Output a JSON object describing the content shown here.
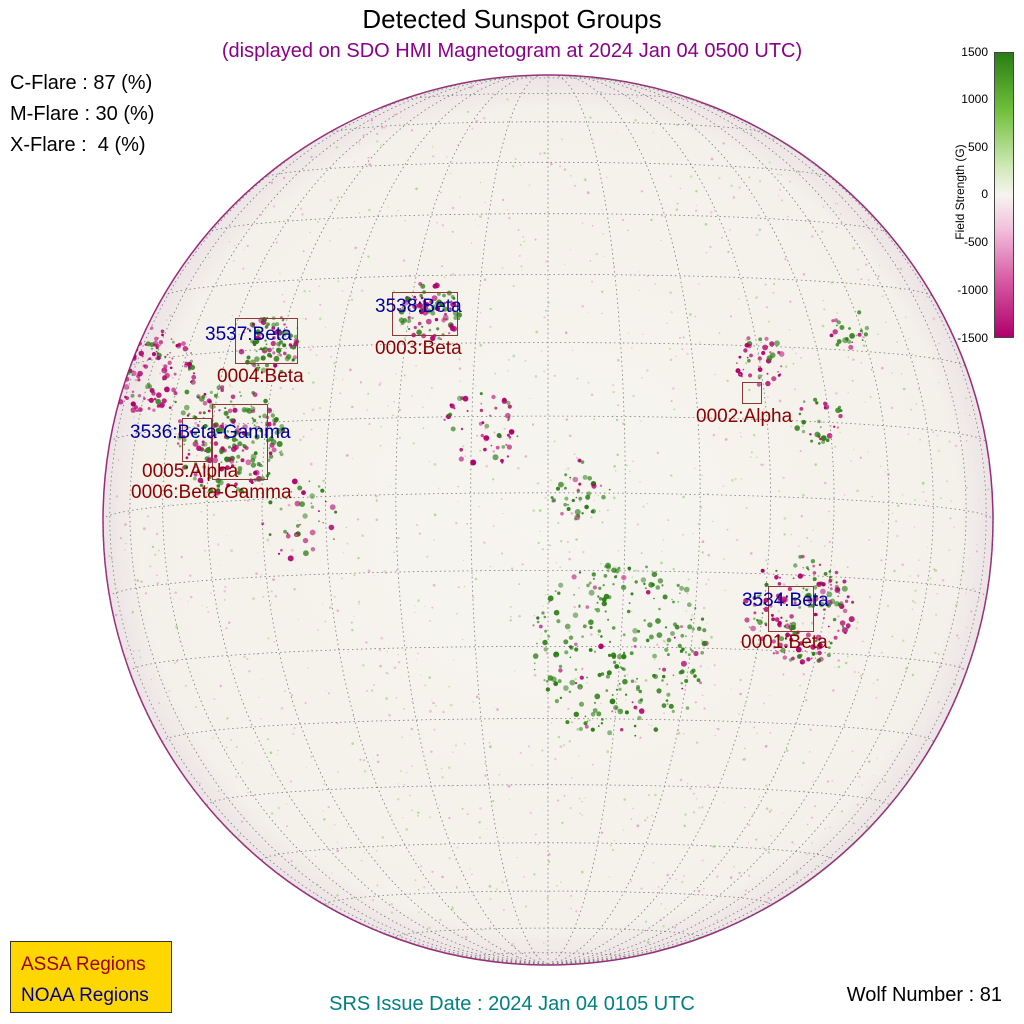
{
  "title": "Detected Sunspot Groups",
  "subtitle": "(displayed on SDO HMI Magnetogram at 2024 Jan 04 0500 UTC)",
  "flares": [
    {
      "text": "C-Flare : 87 (%)"
    },
    {
      "text": "M-Flare : 30 (%)"
    },
    {
      "text": "X-Flare :  4 (%)"
    }
  ],
  "colorbar": {
    "label": "Field Strength (G)",
    "ticks": [
      "1500",
      "1000",
      "500",
      "0",
      "-500",
      "-1000",
      "-1500"
    ],
    "colors": {
      "positive": "#2a7d15",
      "negative": "#b0006a",
      "neutral": "#f7f4ef"
    }
  },
  "regions": [
    {
      "noaa": "3538:Beta",
      "assa": "0003:Beta"
    },
    {
      "noaa": "3537:Beta",
      "assa": "0004:Beta"
    },
    {
      "noaa": "",
      "assa": "0002:Alpha"
    },
    {
      "noaa": "3536:Beta-Gamma",
      "assa": "0005:Alpha"
    },
    {
      "noaa": "",
      "assa": "0006:Beta-Gamma"
    },
    {
      "noaa": "3534:Beta",
      "assa": "0001:Beta"
    }
  ],
  "legend": {
    "assa": "ASSA Regions",
    "noaa": "NOAA Regions"
  },
  "srs": "SRS Issue Date : 2024 Jan 04 0105 UTC",
  "wolf": "Wolf Number : 81"
}
